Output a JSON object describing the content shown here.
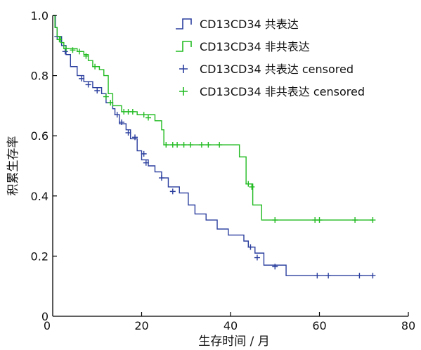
{
  "chart_data": {
    "type": "line",
    "subtype": "kaplan-meier",
    "title": "",
    "xlabel": "生存时间 / 月",
    "ylabel": "积累生存率",
    "xlim": [
      0,
      80
    ],
    "ylim": [
      0,
      1.0
    ],
    "xticks": [
      20,
      40,
      60,
      80
    ],
    "yticks": [
      0,
      0.2,
      0.4,
      0.6,
      0.8,
      1.0
    ],
    "ytick_labels": [
      "0",
      "0.2",
      "0.4",
      "0.6",
      "0.8",
      "1.0"
    ],
    "x_origin_label": "0",
    "grid": false,
    "legend_position": "top-right",
    "series": [
      {
        "name": "CD13CD34 共表达",
        "censored_name": "CD13CD34 共表达 censored",
        "color": "#2b3f9e",
        "steps": [
          [
            0,
            1.0
          ],
          [
            0.6,
            0.96
          ],
          [
            1.0,
            0.93
          ],
          [
            2.0,
            0.9
          ],
          [
            3.0,
            0.87
          ],
          [
            4.0,
            0.83
          ],
          [
            5.5,
            0.8
          ],
          [
            7.0,
            0.78
          ],
          [
            9.0,
            0.76
          ],
          [
            11.0,
            0.74
          ],
          [
            12.0,
            0.71
          ],
          [
            13.5,
            0.69
          ],
          [
            14.0,
            0.67
          ],
          [
            15.0,
            0.64
          ],
          [
            16.5,
            0.62
          ],
          [
            17.5,
            0.59
          ],
          [
            19.0,
            0.55
          ],
          [
            20.0,
            0.52
          ],
          [
            21.5,
            0.5
          ],
          [
            23.0,
            0.48
          ],
          [
            24.5,
            0.46
          ],
          [
            26.0,
            0.43
          ],
          [
            28.5,
            0.41
          ],
          [
            30.5,
            0.37
          ],
          [
            32.0,
            0.34
          ],
          [
            34.5,
            0.32
          ],
          [
            37.0,
            0.29
          ],
          [
            39.5,
            0.27
          ],
          [
            43.0,
            0.25
          ],
          [
            44.0,
            0.23
          ],
          [
            45.5,
            0.21
          ],
          [
            47.5,
            0.17
          ],
          [
            52.5,
            0.135
          ],
          [
            72.0,
            0.135
          ]
        ],
        "censored": [
          [
            1.0,
            0.93
          ],
          [
            2.8,
            0.88
          ],
          [
            6.5,
            0.79
          ],
          [
            8.0,
            0.77
          ],
          [
            10.0,
            0.75
          ],
          [
            14.5,
            0.67
          ],
          [
            15.5,
            0.645
          ],
          [
            17.0,
            0.61
          ],
          [
            18.5,
            0.595
          ],
          [
            20.5,
            0.54
          ],
          [
            21.0,
            0.51
          ],
          [
            24.5,
            0.46
          ],
          [
            27.0,
            0.415
          ],
          [
            44.5,
            0.23
          ],
          [
            46.0,
            0.195
          ],
          [
            50.0,
            0.165
          ],
          [
            59.5,
            0.135
          ],
          [
            62.0,
            0.135
          ],
          [
            69.0,
            0.135
          ],
          [
            72.0,
            0.135
          ]
        ]
      },
      {
        "name": "CD13CD34 非共表达",
        "censored_name": "CD13CD34 非共表达 censored",
        "color": "#22bb22",
        "steps": [
          [
            0,
            1.0
          ],
          [
            0.5,
            0.96
          ],
          [
            1.0,
            0.93
          ],
          [
            1.8,
            0.91
          ],
          [
            2.5,
            0.89
          ],
          [
            5.5,
            0.88
          ],
          [
            7.0,
            0.87
          ],
          [
            8.0,
            0.85
          ],
          [
            9.0,
            0.83
          ],
          [
            10.5,
            0.82
          ],
          [
            11.5,
            0.8
          ],
          [
            12.5,
            0.74
          ],
          [
            13.5,
            0.7
          ],
          [
            15.5,
            0.68
          ],
          [
            19.0,
            0.67
          ],
          [
            23.0,
            0.65
          ],
          [
            24.5,
            0.62
          ],
          [
            25.0,
            0.57
          ],
          [
            42.0,
            0.53
          ],
          [
            43.5,
            0.44
          ],
          [
            45.0,
            0.37
          ],
          [
            47.0,
            0.32
          ],
          [
            72.0,
            0.32
          ]
        ],
        "censored": [
          [
            1.5,
            0.92
          ],
          [
            3.0,
            0.89
          ],
          [
            4.5,
            0.885
          ],
          [
            6.0,
            0.88
          ],
          [
            7.5,
            0.865
          ],
          [
            9.5,
            0.83
          ],
          [
            12.0,
            0.73
          ],
          [
            13.0,
            0.71
          ],
          [
            16.0,
            0.68
          ],
          [
            17.0,
            0.68
          ],
          [
            18.0,
            0.68
          ],
          [
            20.5,
            0.67
          ],
          [
            21.5,
            0.66
          ],
          [
            25.5,
            0.57
          ],
          [
            27.0,
            0.57
          ],
          [
            28.0,
            0.57
          ],
          [
            29.5,
            0.57
          ],
          [
            31.0,
            0.57
          ],
          [
            33.5,
            0.57
          ],
          [
            35.0,
            0.57
          ],
          [
            37.5,
            0.57
          ],
          [
            44.0,
            0.44
          ],
          [
            44.8,
            0.43
          ],
          [
            50.0,
            0.32
          ],
          [
            59.0,
            0.32
          ],
          [
            60.0,
            0.32
          ],
          [
            68.0,
            0.32
          ],
          [
            72.0,
            0.32
          ]
        ]
      }
    ]
  }
}
